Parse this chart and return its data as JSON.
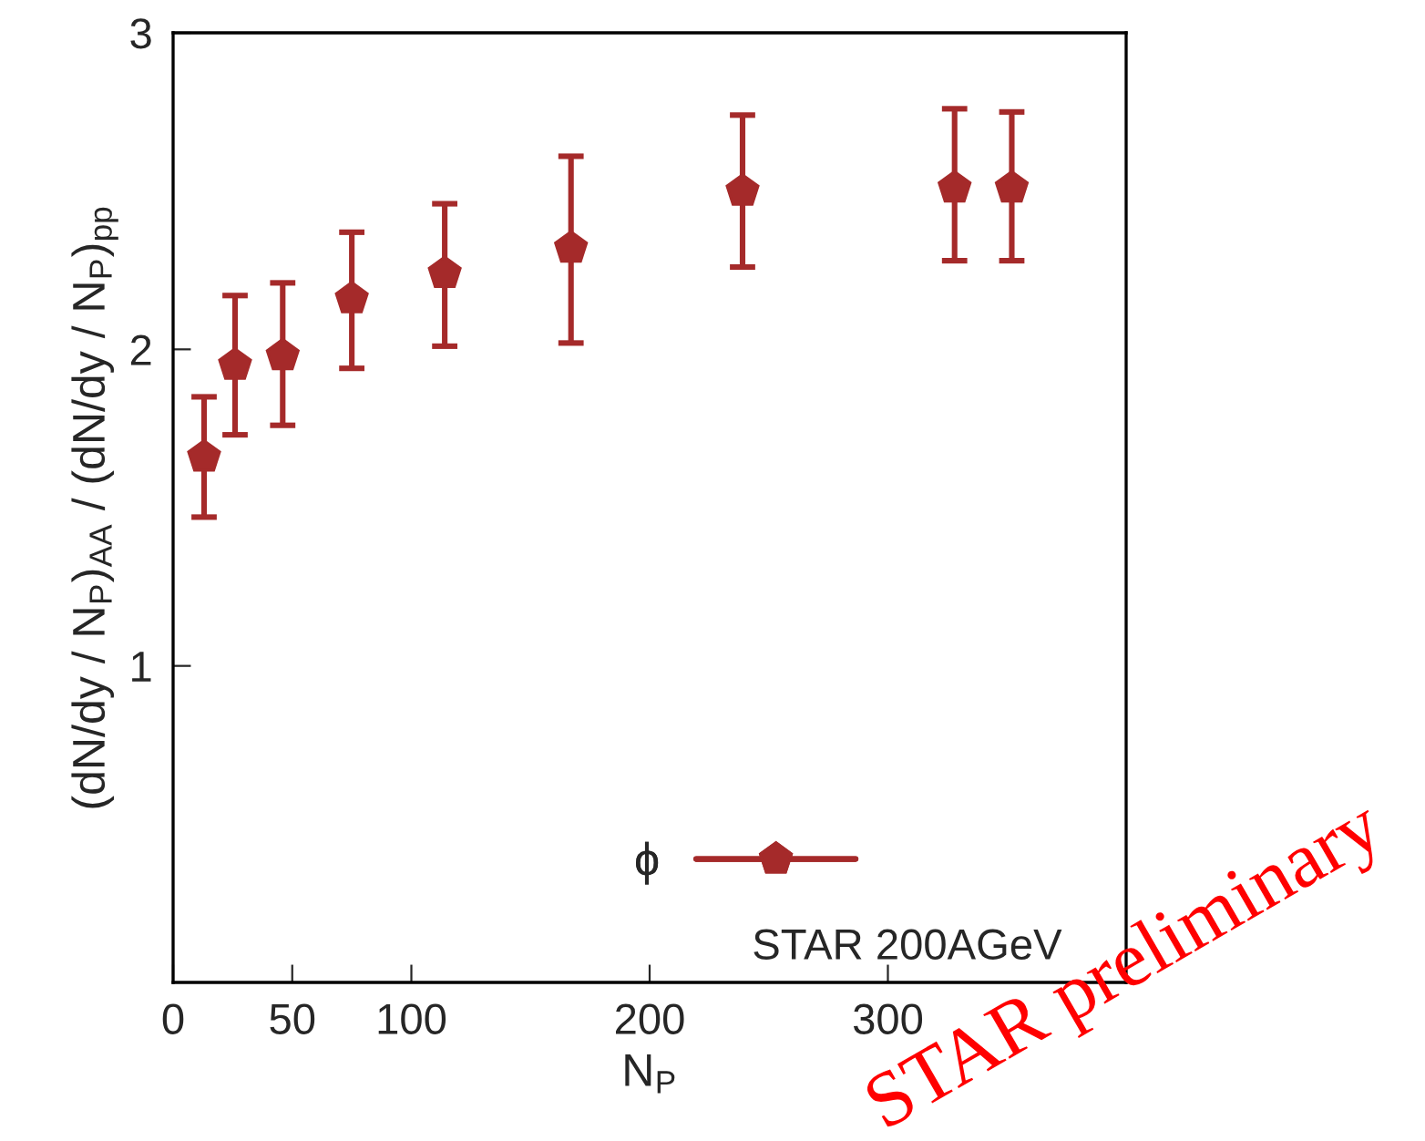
{
  "chart_data": {
    "type": "scatter",
    "xlabel": "N$_{P}$",
    "ylabel": "(dN/dy / N$_{P}$)$_{AA}$ / (dN/dy / N$_{P}$)$_{pp}$",
    "xlim": [
      0,
      400
    ],
    "xticks": [
      0,
      50,
      100,
      200,
      300
    ],
    "ylim": [
      0,
      3
    ],
    "yticks": [
      1,
      2,
      3
    ],
    "series": [
      {
        "name": "ϕ",
        "color": "#a52a2a",
        "x": [
          13,
          26,
          46,
          75,
          114,
          167,
          239,
          328,
          352
        ],
        "values": [
          1.66,
          1.95,
          1.98,
          2.16,
          2.24,
          2.32,
          2.5,
          2.51,
          2.51
        ],
        "errors": [
          [
            1.47,
            1.85
          ],
          [
            1.73,
            2.17
          ],
          [
            1.76,
            2.21
          ],
          [
            1.94,
            2.37
          ],
          [
            2.01,
            2.46
          ],
          [
            2.02,
            2.61
          ],
          [
            2.26,
            2.74
          ],
          [
            2.28,
            2.76
          ],
          [
            2.28,
            2.75
          ]
        ]
      }
    ],
    "grid": false,
    "legend": "bottom",
    "annotations": [
      "STAR 200AGeV",
      "STAR preliminary"
    ]
  }
}
